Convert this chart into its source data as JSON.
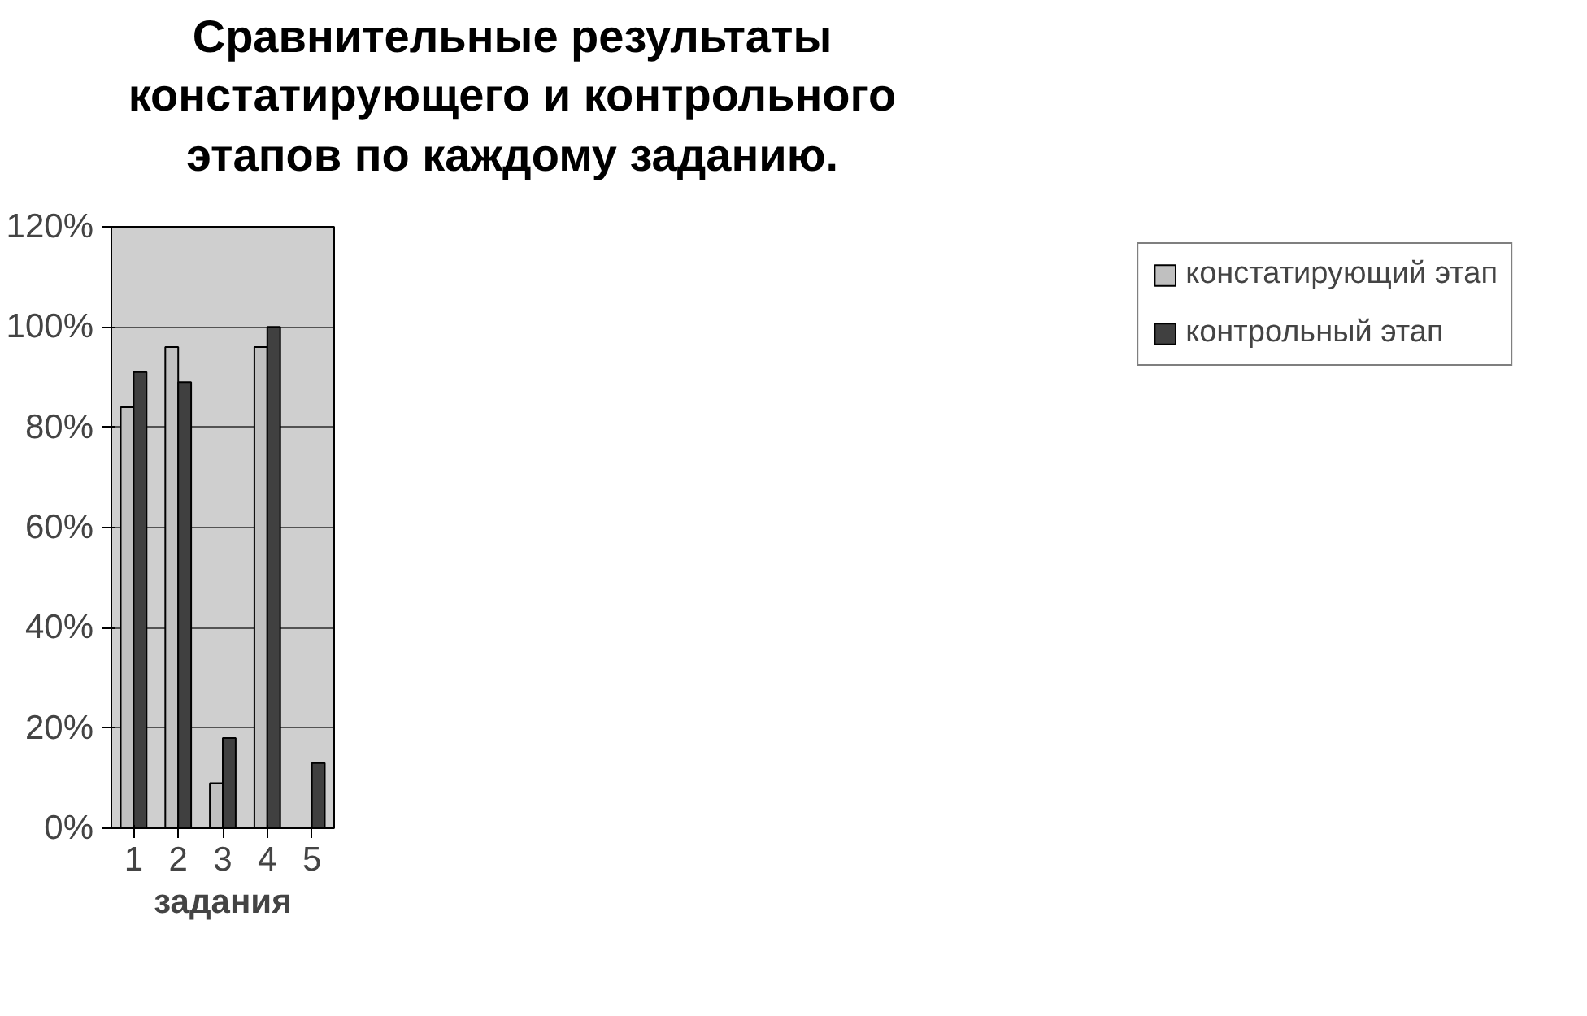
{
  "chart_data": {
    "type": "bar",
    "title": "Сравнительные результаты\nконстатирующего и контрольного\nэтапов по каждому заданию.",
    "xlabel": "задания",
    "categories": [
      "1",
      "2",
      "3",
      "4",
      "5"
    ],
    "series": [
      {
        "name": "констатирующий этап",
        "color": "#c0c0c0",
        "values": [
          84,
          96,
          9,
          96,
          null
        ]
      },
      {
        "name": "контрольный этап",
        "color": "#404040",
        "values": [
          91,
          89,
          18,
          100,
          13
        ]
      }
    ],
    "ylim": [
      0,
      120
    ],
    "yticks": [
      {
        "value": 0,
        "label": "0%"
      },
      {
        "value": 20,
        "label": "20%"
      },
      {
        "value": 40,
        "label": "40%"
      },
      {
        "value": 60,
        "label": "60%"
      },
      {
        "value": 80,
        "label": "80%"
      },
      {
        "value": 100,
        "label": "100%"
      },
      {
        "value": 120,
        "label": "120%"
      }
    ],
    "grid": "y",
    "legend": "right"
  }
}
